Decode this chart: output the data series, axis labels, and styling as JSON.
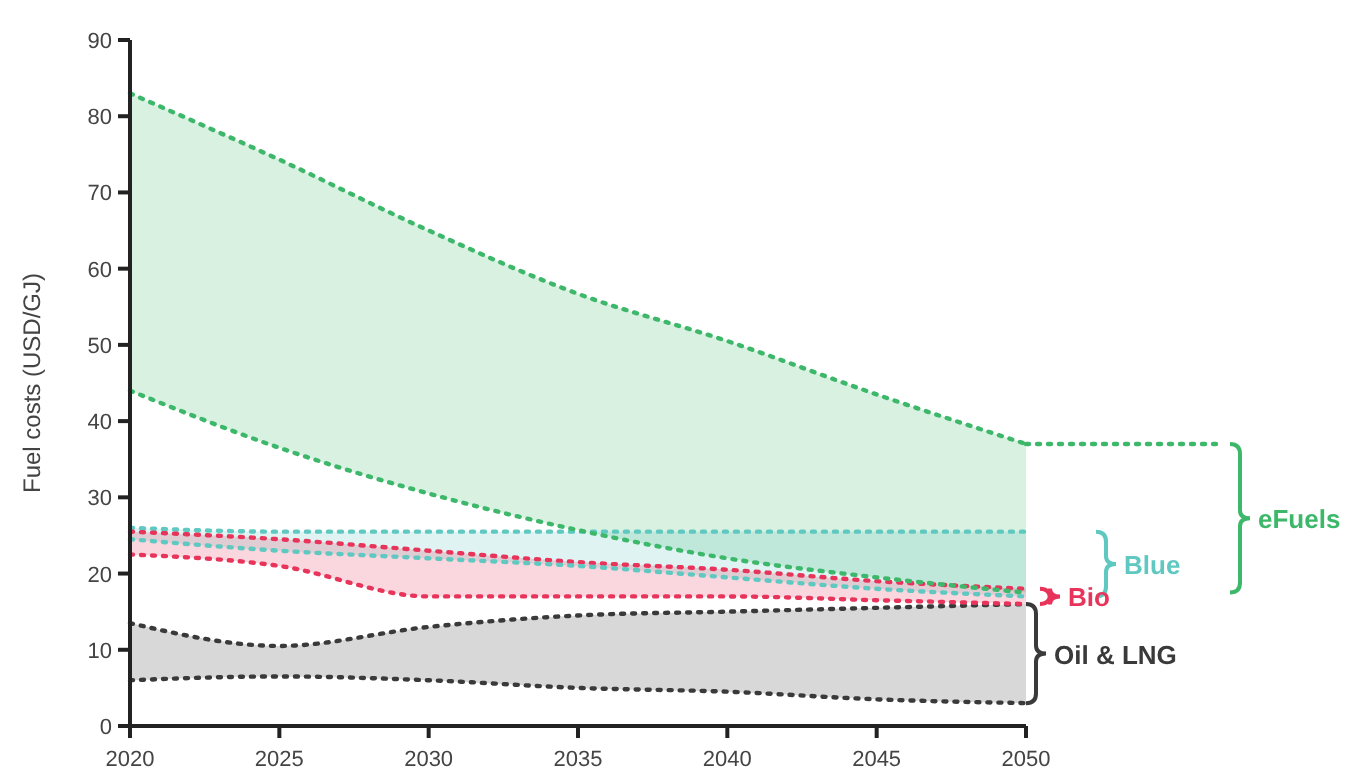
{
  "chart_data": {
    "type": "line",
    "ylabel": "Fuel costs (USD/GJ)",
    "x": [
      2020,
      2025,
      2030,
      2035,
      2040,
      2045,
      2050
    ],
    "xlim": [
      2020,
      2050
    ],
    "xticks": [
      2020,
      2025,
      2030,
      2035,
      2040,
      2045,
      2050
    ],
    "ylim": [
      0,
      90
    ],
    "yticks": [
      0,
      10,
      20,
      30,
      40,
      50,
      60,
      70,
      80,
      90
    ],
    "grid": false,
    "line_style": "dotted",
    "series": [
      {
        "name": "eFuels",
        "color": "#3db86b",
        "values": [
          83,
          74.3,
          65,
          56.7,
          50.5,
          43.5,
          37
        ],
        "upper": [
          83,
          74.3,
          65,
          56.7,
          50.5,
          43.5,
          37
        ],
        "lower": [
          44,
          36.5,
          30.5,
          25.7,
          22,
          19.5,
          17.5
        ]
      },
      {
        "name": "Blue",
        "color": "#5fc8c0",
        "values": [
          26,
          25.5,
          25.5,
          25.5,
          25.5,
          25.5,
          25.5
        ],
        "upper": [
          26,
          25.5,
          25.5,
          25.5,
          25.5,
          25.5,
          25.5
        ],
        "lower": [
          24.5,
          23,
          22,
          21,
          19.5,
          18,
          17
        ]
      },
      {
        "name": "Bio",
        "color": "#e8345a",
        "values": [
          25.5,
          24.5,
          23,
          21.5,
          20.5,
          19,
          18
        ],
        "upper": [
          25.5,
          24.5,
          23,
          21.5,
          20.5,
          19,
          18
        ],
        "lower": [
          22.5,
          21,
          17,
          17,
          17,
          16.5,
          16
        ]
      },
      {
        "name": "Oil & LNG",
        "color": "#3a3a3a",
        "values": [
          13.5,
          10.5,
          13,
          14.5,
          15,
          15.5,
          16
        ],
        "upper": [
          13.5,
          10.5,
          13,
          14.5,
          15,
          15.5,
          16
        ],
        "lower": [
          6,
          6.5,
          6,
          5,
          4.5,
          3.5,
          3
        ]
      },
      {
        "color": "#3db86b",
        "values": [
          44,
          36.5,
          30.5,
          25.7,
          22,
          19.5,
          17.5
        ]
      },
      {
        "color": "#5fc8c0",
        "values": [
          24.5,
          23,
          22,
          21,
          19.5,
          18,
          17
        ]
      },
      {
        "color": "#e8345a",
        "values": [
          22.5,
          21,
          17,
          17,
          17,
          16.5,
          16
        ]
      },
      {
        "color": "#3a3a3a",
        "values": [
          6,
          6.5,
          6,
          5,
          4.5,
          3.5,
          3
        ]
      }
    ]
  }
}
